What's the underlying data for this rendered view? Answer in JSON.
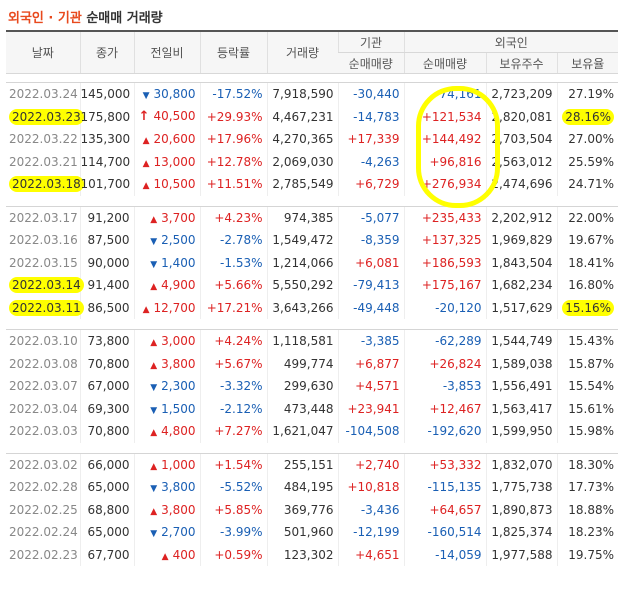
{
  "title": {
    "part1": "외국인 · 기관",
    "part2": " 순매매 거래량"
  },
  "headers": {
    "date": "날짜",
    "close": "종가",
    "change": "전일비",
    "rate": "등락률",
    "volume": "거래량",
    "inst": "기관",
    "foreign": "외국인",
    "inst_net": "순매매량",
    "foreign_net": "순매매량",
    "holdings": "보유주수",
    "ratio": "보유율"
  },
  "groups": [
    [
      {
        "date": "2022.03.24",
        "close": "145,000",
        "dir": "down",
        "change": "30,800",
        "rate": "-17.52%",
        "volume": "7,918,590",
        "inst": "-30,440",
        "foreign": "-74,161",
        "holdings": "2,723,209",
        "ratio": "27.19%"
      },
      {
        "date": "2022.03.23",
        "close": "175,800",
        "dir": "upper",
        "change": "40,500",
        "rate": "+29.93%",
        "volume": "4,467,231",
        "inst": "-14,783",
        "foreign": "+121,534",
        "holdings": "2,820,081",
        "ratio": "28.16%",
        "hl_date": true,
        "hl_ratio": true
      },
      {
        "date": "2022.03.22",
        "close": "135,300",
        "dir": "up",
        "change": "20,600",
        "rate": "+17.96%",
        "volume": "4,270,365",
        "inst": "+17,339",
        "foreign": "+144,492",
        "holdings": "2,703,504",
        "ratio": "27.00%"
      },
      {
        "date": "2022.03.21",
        "close": "114,700",
        "dir": "up",
        "change": "13,000",
        "rate": "+12.78%",
        "volume": "2,069,030",
        "inst": "-4,263",
        "foreign": "+96,816",
        "holdings": "2,563,012",
        "ratio": "25.59%"
      },
      {
        "date": "2022.03.18",
        "close": "101,700",
        "dir": "up",
        "change": "10,500",
        "rate": "+11.51%",
        "volume": "2,785,549",
        "inst": "+6,729",
        "foreign": "+276,934",
        "holdings": "2,474,696",
        "ratio": "24.71%",
        "hl_date": true
      }
    ],
    [
      {
        "date": "2022.03.17",
        "close": "91,200",
        "dir": "up",
        "change": "3,700",
        "rate": "+4.23%",
        "volume": "974,385",
        "inst": "-5,077",
        "foreign": "+235,433",
        "holdings": "2,202,912",
        "ratio": "22.00%"
      },
      {
        "date": "2022.03.16",
        "close": "87,500",
        "dir": "down",
        "change": "2,500",
        "rate": "-2.78%",
        "volume": "1,549,472",
        "inst": "-8,359",
        "foreign": "+137,325",
        "holdings": "1,969,829",
        "ratio": "19.67%"
      },
      {
        "date": "2022.03.15",
        "close": "90,000",
        "dir": "down",
        "change": "1,400",
        "rate": "-1.53%",
        "volume": "1,214,066",
        "inst": "+6,081",
        "foreign": "+186,593",
        "holdings": "1,843,504",
        "ratio": "18.41%"
      },
      {
        "date": "2022.03.14",
        "close": "91,400",
        "dir": "up",
        "change": "4,900",
        "rate": "+5.66%",
        "volume": "5,550,292",
        "inst": "-79,413",
        "foreign": "+175,167",
        "holdings": "1,682,234",
        "ratio": "16.80%",
        "hl_date": true
      },
      {
        "date": "2022.03.11",
        "close": "86,500",
        "dir": "up",
        "change": "12,700",
        "rate": "+17.21%",
        "volume": "3,643,266",
        "inst": "-49,448",
        "foreign": "-20,120",
        "holdings": "1,517,629",
        "ratio": "15.16%",
        "hl_date": true,
        "hl_ratio": true
      }
    ],
    [
      {
        "date": "2022.03.10",
        "close": "73,800",
        "dir": "up",
        "change": "3,000",
        "rate": "+4.24%",
        "volume": "1,118,581",
        "inst": "-3,385",
        "foreign": "-62,289",
        "holdings": "1,544,749",
        "ratio": "15.43%"
      },
      {
        "date": "2022.03.08",
        "close": "70,800",
        "dir": "up",
        "change": "3,800",
        "rate": "+5.67%",
        "volume": "499,774",
        "inst": "+6,877",
        "foreign": "+26,824",
        "holdings": "1,589,038",
        "ratio": "15.87%"
      },
      {
        "date": "2022.03.07",
        "close": "67,000",
        "dir": "down",
        "change": "2,300",
        "rate": "-3.32%",
        "volume": "299,630",
        "inst": "+4,571",
        "foreign": "-3,853",
        "holdings": "1,556,491",
        "ratio": "15.54%"
      },
      {
        "date": "2022.03.04",
        "close": "69,300",
        "dir": "down",
        "change": "1,500",
        "rate": "-2.12%",
        "volume": "473,448",
        "inst": "+23,941",
        "foreign": "+12,467",
        "holdings": "1,563,417",
        "ratio": "15.61%"
      },
      {
        "date": "2022.03.03",
        "close": "70,800",
        "dir": "up",
        "change": "4,800",
        "rate": "+7.27%",
        "volume": "1,621,047",
        "inst": "-104,508",
        "foreign": "-192,620",
        "holdings": "1,599,950",
        "ratio": "15.98%"
      }
    ],
    [
      {
        "date": "2022.03.02",
        "close": "66,000",
        "dir": "up",
        "change": "1,000",
        "rate": "+1.54%",
        "volume": "255,151",
        "inst": "+2,740",
        "foreign": "+53,332",
        "holdings": "1,832,070",
        "ratio": "18.30%"
      },
      {
        "date": "2022.02.28",
        "close": "65,000",
        "dir": "down",
        "change": "3,800",
        "rate": "-5.52%",
        "volume": "484,195",
        "inst": "+10,818",
        "foreign": "-115,135",
        "holdings": "1,775,738",
        "ratio": "17.73%"
      },
      {
        "date": "2022.02.25",
        "close": "68,800",
        "dir": "up",
        "change": "3,800",
        "rate": "+5.85%",
        "volume": "369,776",
        "inst": "-3,436",
        "foreign": "+64,657",
        "holdings": "1,890,873",
        "ratio": "18.88%"
      },
      {
        "date": "2022.02.24",
        "close": "65,000",
        "dir": "down",
        "change": "2,700",
        "rate": "-3.99%",
        "volume": "501,960",
        "inst": "-12,199",
        "foreign": "-160,514",
        "holdings": "1,825,374",
        "ratio": "18.23%"
      },
      {
        "date": "2022.02.23",
        "close": "67,700",
        "dir": "up",
        "change": "400",
        "rate": "+0.59%",
        "volume": "123,302",
        "inst": "+4,651",
        "foreign": "-14,059",
        "holdings": "1,977,588",
        "ratio": "19.75%"
      }
    ]
  ],
  "colors": {
    "up": "#d22222",
    "down": "#1a5fb4",
    "highlight": "#ffff00",
    "title_accent": "#e8491d"
  }
}
